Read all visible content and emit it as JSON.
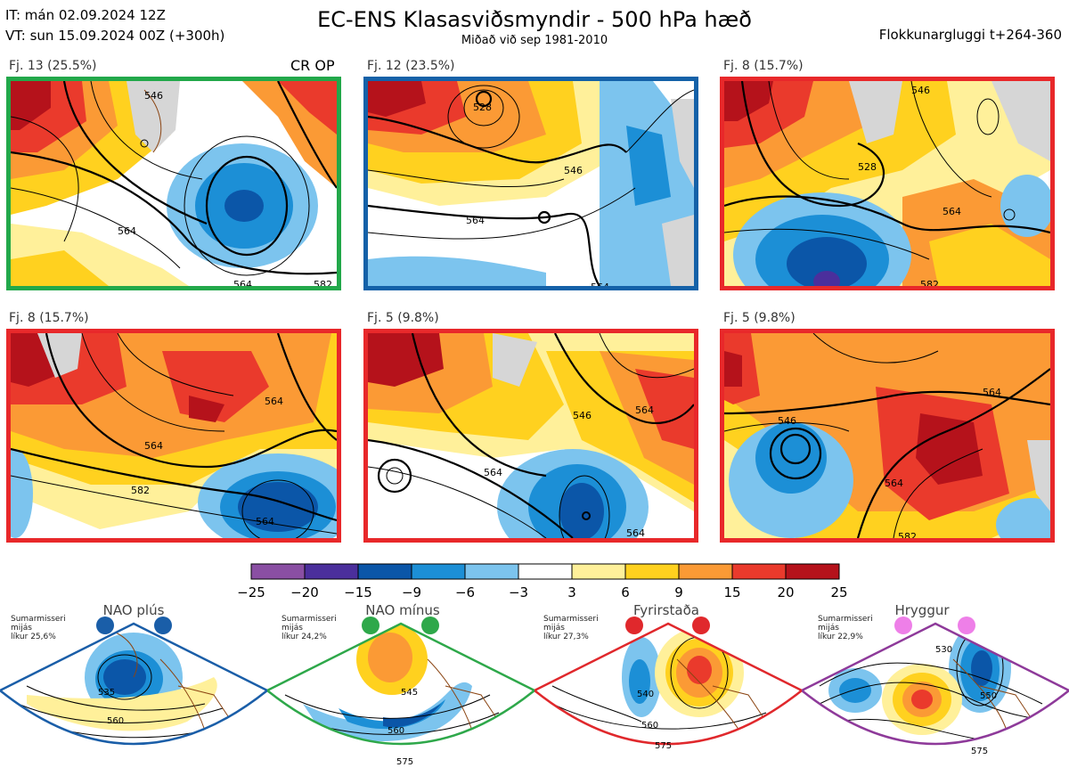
{
  "header": {
    "it": "IT: mán 02.09.2024 12Z",
    "vt": "VT: sun 15.09.2024 00Z  (+300h)",
    "title": "EC-ENS Klasasviðsmyndir - 500 hPa hæð",
    "subtitle": "Miðað við sep 1981-2010",
    "window": "Flokkunargluggi t+264-360"
  },
  "crop_label": "CR OP",
  "panels": [
    {
      "label": "Fj. 13 (25.5%)",
      "border": "#22a84a",
      "contours": [
        "564",
        "546",
        "564",
        "582"
      ]
    },
    {
      "label": "Fj. 12 (23.5%)",
      "border": "#1461a8",
      "contours": [
        "528",
        "546",
        "564",
        "564"
      ]
    },
    {
      "label": "Fj. 8 (15.7%)",
      "border": "#e8282a",
      "contours": [
        "546",
        "528",
        "564",
        "582"
      ]
    },
    {
      "label": "Fj. 8 (15.7%)",
      "border": "#e8282a",
      "contours": [
        "564",
        "564",
        "582",
        "564"
      ]
    },
    {
      "label": "Fj. 5 (9.8%)",
      "border": "#e8282a",
      "contours": [
        "546",
        "564",
        "564",
        "564"
      ]
    },
    {
      "label": "Fj. 5 (9.8%)",
      "border": "#e8282a",
      "contours": [
        "546",
        "564",
        "564",
        "582"
      ]
    }
  ],
  "colorbar": {
    "ticks": [
      "−25",
      "−20",
      "−15",
      "−9",
      "−6",
      "−3",
      "3",
      "6",
      "9",
      "15",
      "20",
      "25"
    ],
    "colors": [
      "#8a4fa3",
      "#4b2f9c",
      "#0b56a8",
      "#1c8fd6",
      "#7cc4ee",
      "#ffffff",
      "#fff09a",
      "#ffd11f",
      "#fb9a35",
      "#ea3a2c",
      "#b5121b"
    ]
  },
  "regimes": [
    {
      "name": "NAO plús",
      "note": "Sumarmisseri\nmijás\nlíkur 25,6%",
      "color": "#1a5ea8",
      "dot": "#1a5ea8",
      "labels": [
        "535",
        "560"
      ]
    },
    {
      "name": "NAO mínus",
      "note": "Sumarmisseri\nmijás\nlíkur 24,2%",
      "color": "#2ea84a",
      "dot": "#2ea84a",
      "labels": [
        "545",
        "560",
        "575"
      ]
    },
    {
      "name": "Fyrirstaða",
      "note": "Sumarmisseri\nmijás\nlíkur 27,3%",
      "color": "#e0282c",
      "dot": "#e0282c",
      "labels": [
        "540",
        "560",
        "575"
      ]
    },
    {
      "name": "Hryggur",
      "note": "Sumarmisseri\nmijás\nlíkur 22,9%",
      "color": "#8e3a9a",
      "dot": "#ee7fe8",
      "labels": [
        "530",
        "550",
        "575"
      ]
    }
  ]
}
